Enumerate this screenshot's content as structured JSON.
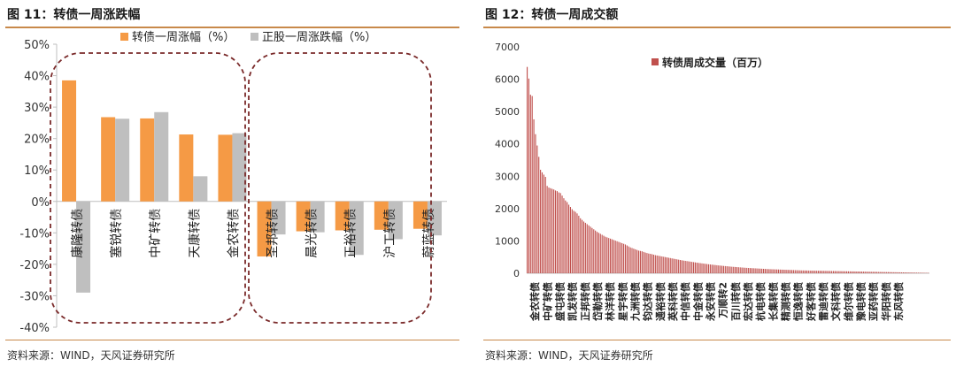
{
  "left": {
    "title": "图 11：转债一周涨跌幅",
    "source": "资料来源：WIND，天风证券研究所"
  },
  "right": {
    "title": "图 12：转债一周成交额",
    "source": "资料来源：WIND，天风证券研究所"
  },
  "chart_data": [
    {
      "type": "bar",
      "title": "",
      "ylim": [
        -40,
        50
      ],
      "yticks": [
        "50%",
        "40%",
        "30%",
        "20%",
        "10%",
        "0%",
        "-10%",
        "-20%",
        "-30%",
        "-40%"
      ],
      "ytick_values": [
        50,
        40,
        30,
        20,
        10,
        0,
        -10,
        -20,
        -30,
        -40
      ],
      "categories": [
        "康隆转债",
        "塞锐转债",
        "中矿转债",
        "天康转债",
        "金农转债",
        "圣邦转债",
        "晨光转债",
        "正裕转债",
        "沪工转债",
        "蔚蓝转债"
      ],
      "series": [
        {
          "name": "转债一周涨幅（%）",
          "color": "#f59a45",
          "values": [
            38.5,
            26.8,
            26.4,
            21.3,
            21.2,
            -17.5,
            -9.5,
            -9.2,
            -9.0,
            -8.7
          ]
        },
        {
          "name": "正股一周涨跌幅（%）",
          "color": "#bfbfbf",
          "values": [
            -29.0,
            26.3,
            28.4,
            8.0,
            21.7,
            -10.5,
            -9.8,
            -17.0,
            -12.0,
            -10.8
          ]
        }
      ],
      "legend": "top",
      "grid": false
    },
    {
      "type": "bar",
      "title": "",
      "ylim": [
        0,
        7000
      ],
      "yticks": [
        "7000",
        "6000",
        "5000",
        "4000",
        "3000",
        "2000",
        "1000",
        "0"
      ],
      "ytick_values": [
        7000,
        6000,
        5000,
        4000,
        3000,
        2000,
        1000,
        0
      ],
      "xtick_labels": [
        "金农转债",
        "中矿转债",
        "盛屯转债",
        "凯发转债",
        "正邦转债",
        "岱勒转债",
        "林洋转债",
        "星宇转债",
        "九洲转债",
        "钧达转债",
        "通裕转债",
        "英科转债",
        "中信转债",
        "中金转债",
        "永安转债",
        "万顺转2",
        "百川转债",
        "宏达转债",
        "杭电转债",
        "长集转债",
        "精测转债",
        "恒逸转债",
        "好客转债",
        "雷迪转债",
        "文科转债",
        "维尔转债",
        "豫电转债",
        "亚药转债",
        "华阳转债",
        "东风转债"
      ],
      "series": [
        {
          "name": "转债周成交量（百万）",
          "color": "#c0504d",
          "values": [
            6380,
            6020,
            5520,
            5480,
            4760,
            4300,
            3950,
            3600,
            3200,
            3120,
            3050,
            2980,
            2700,
            2650,
            2630,
            2610,
            2590,
            2560,
            2540,
            2500,
            2480,
            2400,
            2320,
            2250,
            2200,
            2120,
            2050,
            1980,
            1930,
            1900,
            1850,
            1780,
            1700,
            1650,
            1600,
            1560,
            1520,
            1480,
            1440,
            1400,
            1360,
            1320,
            1280,
            1250,
            1220,
            1190,
            1160,
            1130,
            1110,
            1090,
            1070,
            1050,
            1030,
            1010,
            990,
            970,
            950,
            930,
            910,
            890,
            860,
            830,
            800,
            780,
            760,
            740,
            720,
            700,
            690,
            680,
            660,
            640,
            625,
            610,
            600,
            590,
            575,
            560,
            550,
            540,
            530,
            520,
            510,
            500,
            490,
            480,
            470,
            460,
            450,
            440,
            430,
            420,
            410,
            400,
            392,
            384,
            376,
            368,
            360,
            352,
            344,
            336,
            328,
            320,
            313,
            306,
            299,
            292,
            285,
            278,
            272,
            266,
            260,
            254,
            248,
            242,
            237,
            232,
            227,
            222,
            217,
            212,
            207,
            202,
            198,
            194,
            190,
            186,
            182,
            178,
            174,
            170,
            167,
            164,
            161,
            158,
            155,
            152,
            149,
            146,
            143,
            140,
            137,
            134,
            131,
            128,
            126,
            124,
            122,
            120,
            118,
            116,
            114,
            112,
            110,
            108,
            106,
            104,
            102,
            100,
            98,
            96,
            94,
            92,
            90,
            88,
            87,
            86,
            85,
            84,
            83,
            82,
            81,
            80,
            79,
            78,
            77,
            76,
            75,
            74,
            73,
            72,
            71,
            70,
            69,
            68,
            67,
            66,
            65,
            64,
            63,
            62,
            61,
            60,
            59,
            58,
            57,
            56,
            55,
            54,
            53,
            52,
            51,
            50,
            49,
            48,
            47,
            46,
            45,
            44,
            43,
            42,
            41,
            40,
            39,
            38,
            37,
            36,
            35,
            34,
            33,
            32,
            31,
            30,
            29,
            28,
            27,
            26,
            25,
            24,
            23,
            22,
            21,
            20,
            19,
            18,
            17,
            16,
            15,
            14,
            13,
            12
          ]
        }
      ],
      "legend": "top",
      "grid": false
    }
  ]
}
